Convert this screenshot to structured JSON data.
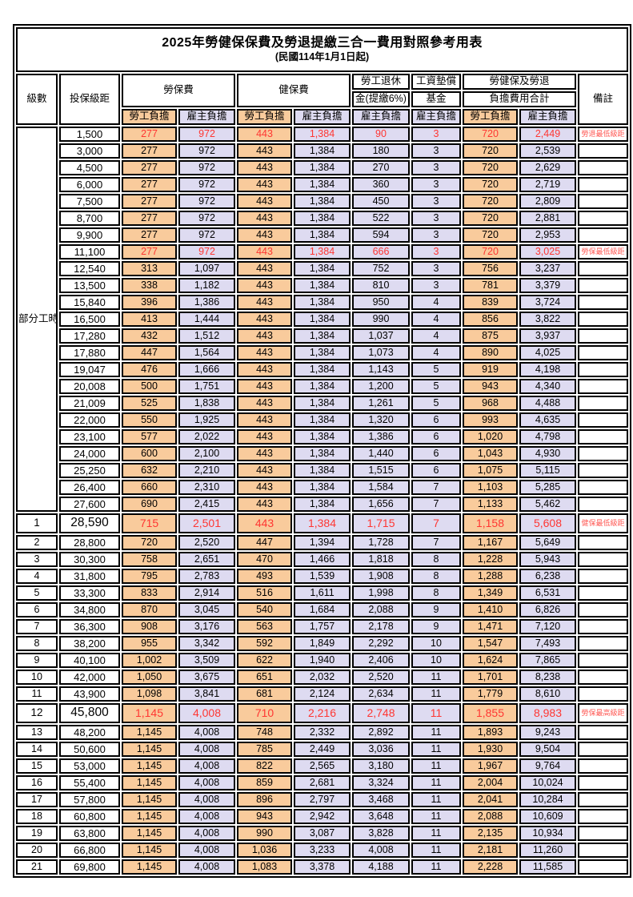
{
  "title": "2025年勞健保保費及勞退提繳三合一費用對照參考用表",
  "subtitle": "(民國114年1月1日起)",
  "colors": {
    "employee_bg": "#F9CB9C",
    "employer_bg": "#DEDBF1",
    "highlight_text": "#FF3632",
    "note_text": "#FF5A55",
    "border": "#000000"
  },
  "header": {
    "level": "級數",
    "bracket": "投保級距",
    "labor_group": "勞保費",
    "health_group": "健保費",
    "pension_line1": "勞工退休",
    "pension_line2": "金(提繳6%)",
    "wagefund_line1": "工資墊償",
    "wagefund_line2": "基金",
    "total_line1": "勞健保及勞退",
    "total_line2": "負擔費用合計",
    "employee": "勞工負擔",
    "employer": "雇主負擔",
    "note": "備註"
  },
  "part_time_label": "部分工時",
  "rows": [
    {
      "lv": "",
      "br": "1,500",
      "le": "277",
      "lr": "972",
      "he": "443",
      "hr": "1,384",
      "pe": "90",
      "wf": "3",
      "te": "720",
      "tr": "2,449",
      "note": "勞退最低級距",
      "hl": true,
      "big": false
    },
    {
      "lv": "",
      "br": "3,000",
      "le": "277",
      "lr": "972",
      "he": "443",
      "hr": "1,384",
      "pe": "180",
      "wf": "3",
      "te": "720",
      "tr": "2,539",
      "note": "",
      "hl": false,
      "big": false
    },
    {
      "lv": "",
      "br": "4,500",
      "le": "277",
      "lr": "972",
      "he": "443",
      "hr": "1,384",
      "pe": "270",
      "wf": "3",
      "te": "720",
      "tr": "2,629",
      "note": "",
      "hl": false,
      "big": false
    },
    {
      "lv": "",
      "br": "6,000",
      "le": "277",
      "lr": "972",
      "he": "443",
      "hr": "1,384",
      "pe": "360",
      "wf": "3",
      "te": "720",
      "tr": "2,719",
      "note": "",
      "hl": false,
      "big": false
    },
    {
      "lv": "",
      "br": "7,500",
      "le": "277",
      "lr": "972",
      "he": "443",
      "hr": "1,384",
      "pe": "450",
      "wf": "3",
      "te": "720",
      "tr": "2,809",
      "note": "",
      "hl": false,
      "big": false
    },
    {
      "lv": "",
      "br": "8,700",
      "le": "277",
      "lr": "972",
      "he": "443",
      "hr": "1,384",
      "pe": "522",
      "wf": "3",
      "te": "720",
      "tr": "2,881",
      "note": "",
      "hl": false,
      "big": false
    },
    {
      "lv": "",
      "br": "9,900",
      "le": "277",
      "lr": "972",
      "he": "443",
      "hr": "1,384",
      "pe": "594",
      "wf": "3",
      "te": "720",
      "tr": "2,953",
      "note": "",
      "hl": false,
      "big": false
    },
    {
      "lv": "",
      "br": "11,100",
      "le": "277",
      "lr": "972",
      "he": "443",
      "hr": "1,384",
      "pe": "666",
      "wf": "3",
      "te": "720",
      "tr": "3,025",
      "note": "勞保最低級距",
      "hl": true,
      "big": false
    },
    {
      "lv": "",
      "br": "12,540",
      "le": "313",
      "lr": "1,097",
      "he": "443",
      "hr": "1,384",
      "pe": "752",
      "wf": "3",
      "te": "756",
      "tr": "3,237",
      "note": "",
      "hl": false,
      "big": false
    },
    {
      "lv": "",
      "br": "13,500",
      "le": "338",
      "lr": "1,182",
      "he": "443",
      "hr": "1,384",
      "pe": "810",
      "wf": "3",
      "te": "781",
      "tr": "3,379",
      "note": "",
      "hl": false,
      "big": false
    },
    {
      "lv": "",
      "br": "15,840",
      "le": "396",
      "lr": "1,386",
      "he": "443",
      "hr": "1,384",
      "pe": "950",
      "wf": "4",
      "te": "839",
      "tr": "3,724",
      "note": "",
      "hl": false,
      "big": false
    },
    {
      "lv": "",
      "br": "16,500",
      "le": "413",
      "lr": "1,444",
      "he": "443",
      "hr": "1,384",
      "pe": "990",
      "wf": "4",
      "te": "856",
      "tr": "3,822",
      "note": "",
      "hl": false,
      "big": false
    },
    {
      "lv": "",
      "br": "17,280",
      "le": "432",
      "lr": "1,512",
      "he": "443",
      "hr": "1,384",
      "pe": "1,037",
      "wf": "4",
      "te": "875",
      "tr": "3,937",
      "note": "",
      "hl": false,
      "big": false
    },
    {
      "lv": "",
      "br": "17,880",
      "le": "447",
      "lr": "1,564",
      "he": "443",
      "hr": "1,384",
      "pe": "1,073",
      "wf": "4",
      "te": "890",
      "tr": "4,025",
      "note": "",
      "hl": false,
      "big": false
    },
    {
      "lv": "",
      "br": "19,047",
      "le": "476",
      "lr": "1,666",
      "he": "443",
      "hr": "1,384",
      "pe": "1,143",
      "wf": "5",
      "te": "919",
      "tr": "4,198",
      "note": "",
      "hl": false,
      "big": false
    },
    {
      "lv": "",
      "br": "20,008",
      "le": "500",
      "lr": "1,751",
      "he": "443",
      "hr": "1,384",
      "pe": "1,200",
      "wf": "5",
      "te": "943",
      "tr": "4,340",
      "note": "",
      "hl": false,
      "big": false
    },
    {
      "lv": "",
      "br": "21,009",
      "le": "525",
      "lr": "1,838",
      "he": "443",
      "hr": "1,384",
      "pe": "1,261",
      "wf": "5",
      "te": "968",
      "tr": "4,488",
      "note": "",
      "hl": false,
      "big": false
    },
    {
      "lv": "",
      "br": "22,000",
      "le": "550",
      "lr": "1,925",
      "he": "443",
      "hr": "1,384",
      "pe": "1,320",
      "wf": "6",
      "te": "993",
      "tr": "4,635",
      "note": "",
      "hl": false,
      "big": false
    },
    {
      "lv": "",
      "br": "23,100",
      "le": "577",
      "lr": "2,022",
      "he": "443",
      "hr": "1,384",
      "pe": "1,386",
      "wf": "6",
      "te": "1,020",
      "tr": "4,798",
      "note": "",
      "hl": false,
      "big": false
    },
    {
      "lv": "",
      "br": "24,000",
      "le": "600",
      "lr": "2,100",
      "he": "443",
      "hr": "1,384",
      "pe": "1,440",
      "wf": "6",
      "te": "1,043",
      "tr": "4,930",
      "note": "",
      "hl": false,
      "big": false
    },
    {
      "lv": "",
      "br": "25,250",
      "le": "632",
      "lr": "2,210",
      "he": "443",
      "hr": "1,384",
      "pe": "1,515",
      "wf": "6",
      "te": "1,075",
      "tr": "5,115",
      "note": "",
      "hl": false,
      "big": false
    },
    {
      "lv": "",
      "br": "26,400",
      "le": "660",
      "lr": "2,310",
      "he": "443",
      "hr": "1,384",
      "pe": "1,584",
      "wf": "7",
      "te": "1,103",
      "tr": "5,285",
      "note": "",
      "hl": false,
      "big": false
    },
    {
      "lv": "",
      "br": "27,600",
      "le": "690",
      "lr": "2,415",
      "he": "443",
      "hr": "1,384",
      "pe": "1,656",
      "wf": "7",
      "te": "1,133",
      "tr": "5,462",
      "note": "",
      "hl": false,
      "big": false
    },
    {
      "lv": "1",
      "br": "28,590",
      "le": "715",
      "lr": "2,501",
      "he": "443",
      "hr": "1,384",
      "pe": "1,715",
      "wf": "7",
      "te": "1,158",
      "tr": "5,608",
      "note": "健保最低級距",
      "hl": true,
      "big": true
    },
    {
      "lv": "2",
      "br": "28,800",
      "le": "720",
      "lr": "2,520",
      "he": "447",
      "hr": "1,394",
      "pe": "1,728",
      "wf": "7",
      "te": "1,167",
      "tr": "5,649",
      "note": "",
      "hl": false,
      "big": false
    },
    {
      "lv": "3",
      "br": "30,300",
      "le": "758",
      "lr": "2,651",
      "he": "470",
      "hr": "1,466",
      "pe": "1,818",
      "wf": "8",
      "te": "1,228",
      "tr": "5,943",
      "note": "",
      "hl": false,
      "big": false
    },
    {
      "lv": "4",
      "br": "31,800",
      "le": "795",
      "lr": "2,783",
      "he": "493",
      "hr": "1,539",
      "pe": "1,908",
      "wf": "8",
      "te": "1,288",
      "tr": "6,238",
      "note": "",
      "hl": false,
      "big": false
    },
    {
      "lv": "5",
      "br": "33,300",
      "le": "833",
      "lr": "2,914",
      "he": "516",
      "hr": "1,611",
      "pe": "1,998",
      "wf": "8",
      "te": "1,349",
      "tr": "6,531",
      "note": "",
      "hl": false,
      "big": false
    },
    {
      "lv": "6",
      "br": "34,800",
      "le": "870",
      "lr": "3,045",
      "he": "540",
      "hr": "1,684",
      "pe": "2,088",
      "wf": "9",
      "te": "1,410",
      "tr": "6,826",
      "note": "",
      "hl": false,
      "big": false
    },
    {
      "lv": "7",
      "br": "36,300",
      "le": "908",
      "lr": "3,176",
      "he": "563",
      "hr": "1,757",
      "pe": "2,178",
      "wf": "9",
      "te": "1,471",
      "tr": "7,120",
      "note": "",
      "hl": false,
      "big": false
    },
    {
      "lv": "8",
      "br": "38,200",
      "le": "955",
      "lr": "3,342",
      "he": "592",
      "hr": "1,849",
      "pe": "2,292",
      "wf": "10",
      "te": "1,547",
      "tr": "7,493",
      "note": "",
      "hl": false,
      "big": false
    },
    {
      "lv": "9",
      "br": "40,100",
      "le": "1,002",
      "lr": "3,509",
      "he": "622",
      "hr": "1,940",
      "pe": "2,406",
      "wf": "10",
      "te": "1,624",
      "tr": "7,865",
      "note": "",
      "hl": false,
      "big": false
    },
    {
      "lv": "10",
      "br": "42,000",
      "le": "1,050",
      "lr": "3,675",
      "he": "651",
      "hr": "2,032",
      "pe": "2,520",
      "wf": "11",
      "te": "1,701",
      "tr": "8,238",
      "note": "",
      "hl": false,
      "big": false
    },
    {
      "lv": "11",
      "br": "43,900",
      "le": "1,098",
      "lr": "3,841",
      "he": "681",
      "hr": "2,124",
      "pe": "2,634",
      "wf": "11",
      "te": "1,779",
      "tr": "8,610",
      "note": "",
      "hl": false,
      "big": false
    },
    {
      "lv": "12",
      "br": "45,800",
      "le": "1,145",
      "lr": "4,008",
      "he": "710",
      "hr": "2,216",
      "pe": "2,748",
      "wf": "11",
      "te": "1,855",
      "tr": "8,983",
      "note": "勞保最高級距",
      "hl": true,
      "big": true
    },
    {
      "lv": "13",
      "br": "48,200",
      "le": "1,145",
      "lr": "4,008",
      "he": "748",
      "hr": "2,332",
      "pe": "2,892",
      "wf": "11",
      "te": "1,893",
      "tr": "9,243",
      "note": "",
      "hl": false,
      "big": false
    },
    {
      "lv": "14",
      "br": "50,600",
      "le": "1,145",
      "lr": "4,008",
      "he": "785",
      "hr": "2,449",
      "pe": "3,036",
      "wf": "11",
      "te": "1,930",
      "tr": "9,504",
      "note": "",
      "hl": false,
      "big": false
    },
    {
      "lv": "15",
      "br": "53,000",
      "le": "1,145",
      "lr": "4,008",
      "he": "822",
      "hr": "2,565",
      "pe": "3,180",
      "wf": "11",
      "te": "1,967",
      "tr": "9,764",
      "note": "",
      "hl": false,
      "big": false
    },
    {
      "lv": "16",
      "br": "55,400",
      "le": "1,145",
      "lr": "4,008",
      "he": "859",
      "hr": "2,681",
      "pe": "3,324",
      "wf": "11",
      "te": "2,004",
      "tr": "10,024",
      "note": "",
      "hl": false,
      "big": false
    },
    {
      "lv": "17",
      "br": "57,800",
      "le": "1,145",
      "lr": "4,008",
      "he": "896",
      "hr": "2,797",
      "pe": "3,468",
      "wf": "11",
      "te": "2,041",
      "tr": "10,284",
      "note": "",
      "hl": false,
      "big": false
    },
    {
      "lv": "18",
      "br": "60,800",
      "le": "1,145",
      "lr": "4,008",
      "he": "943",
      "hr": "2,942",
      "pe": "3,648",
      "wf": "11",
      "te": "2,088",
      "tr": "10,609",
      "note": "",
      "hl": false,
      "big": false
    },
    {
      "lv": "19",
      "br": "63,800",
      "le": "1,145",
      "lr": "4,008",
      "he": "990",
      "hr": "3,087",
      "pe": "3,828",
      "wf": "11",
      "te": "2,135",
      "tr": "10,934",
      "note": "",
      "hl": false,
      "big": false
    },
    {
      "lv": "20",
      "br": "66,800",
      "le": "1,145",
      "lr": "4,008",
      "he": "1,036",
      "hr": "3,233",
      "pe": "4,008",
      "wf": "11",
      "te": "2,181",
      "tr": "11,260",
      "note": "",
      "hl": false,
      "big": false
    },
    {
      "lv": "21",
      "br": "69,800",
      "le": "1,145",
      "lr": "4,008",
      "he": "1,083",
      "hr": "3,378",
      "pe": "4,188",
      "wf": "11",
      "te": "2,228",
      "tr": "11,585",
      "note": "",
      "hl": false,
      "big": false
    }
  ]
}
